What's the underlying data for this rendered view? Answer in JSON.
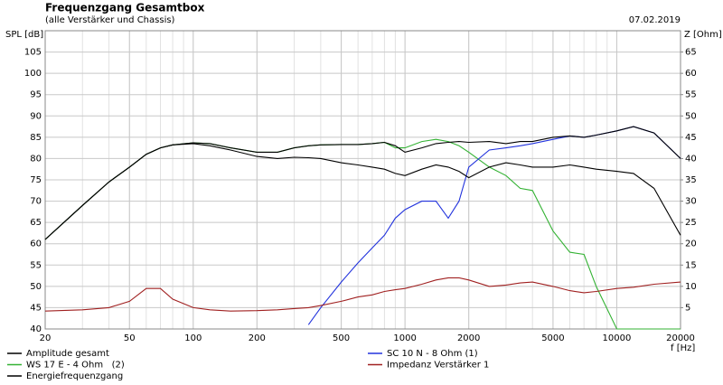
{
  "chart_data": {
    "type": "line",
    "title": "Frequenzgang Gesamtbox",
    "subtitle": "(alle Verstärker und Chassis)",
    "date": "07.02.2019",
    "y_label": "SPL [dB]",
    "y2_label": "Z [Ohm]",
    "x_label": "f [Hz]",
    "log_x": true,
    "grid": true,
    "xlim": [
      20,
      20000
    ],
    "xticks": [
      20,
      50,
      100,
      200,
      500,
      1000,
      2000,
      5000,
      10000,
      20000
    ],
    "ylim": [
      40,
      110
    ],
    "yticks": [
      40,
      45,
      50,
      55,
      60,
      65,
      70,
      75,
      80,
      85,
      90,
      95,
      100,
      105
    ],
    "y2lim": [
      0,
      70
    ],
    "y2ticks": [
      5,
      10,
      15,
      20,
      25,
      30,
      35,
      40,
      45,
      50,
      55,
      60,
      65
    ],
    "x": [
      20,
      30,
      40,
      50,
      60,
      70,
      80,
      100,
      120,
      150,
      200,
      250,
      300,
      350,
      400,
      500,
      600,
      700,
      800,
      900,
      1000,
      1200,
      1400,
      1600,
      1800,
      2000,
      2500,
      3000,
      3500,
      4000,
      5000,
      6000,
      7000,
      8000,
      10000,
      12000,
      15000,
      20000
    ],
    "series": [
      {
        "name": "Amplitude gesamt",
        "color": "#000000",
        "values": [
          61,
          69,
          74.5,
          78,
          81,
          82.5,
          83.2,
          83.7,
          83.5,
          82.5,
          81.5,
          81.5,
          82.5,
          83,
          83.2,
          83.3,
          83.3,
          83.5,
          83.8,
          83,
          81.5,
          82.5,
          83.5,
          83.8,
          84,
          83.8,
          84,
          83.5,
          84,
          84,
          85,
          85.3,
          85,
          85.5,
          86.5,
          87.5,
          86,
          80
        ]
      },
      {
        "name": "WS 17 E - 4 Ohm   (2)",
        "color": "#33b233",
        "values": [
          61,
          69,
          74.5,
          78,
          81,
          82.5,
          83.2,
          83.7,
          83.5,
          82.5,
          81.5,
          81.5,
          82.5,
          83,
          83.2,
          83.3,
          83.3,
          83.5,
          83.8,
          82.5,
          82.5,
          84,
          84.5,
          84,
          83,
          81.5,
          78,
          76,
          73,
          72.5,
          63,
          58,
          57.5,
          50,
          40,
          40,
          40,
          40
        ]
      },
      {
        "name": "Energiefrequenzgang",
        "color": "#000000",
        "values": [
          61,
          69,
          74.5,
          78,
          81,
          82.5,
          83.2,
          83.5,
          83,
          82,
          80.5,
          80,
          80.3,
          80.2,
          80,
          79,
          78.5,
          78,
          77.5,
          76.5,
          76,
          77.5,
          78.5,
          78,
          77,
          75.5,
          78,
          79,
          78.5,
          78,
          78,
          78.5,
          78,
          77.5,
          77,
          76.5,
          73,
          62
        ]
      },
      {
        "name": "SC 10 N - 8 Ohm (1)",
        "color": "#2233dd",
        "values": [
          null,
          null,
          null,
          null,
          null,
          null,
          null,
          null,
          null,
          null,
          null,
          null,
          null,
          41,
          45,
          51,
          55.5,
          59,
          62,
          66,
          68,
          70,
          70,
          66,
          70,
          78,
          82,
          82.5,
          83,
          83.5,
          84.5,
          85.3,
          85,
          85.5,
          86.5,
          87.5,
          86,
          80
        ]
      },
      {
        "name": "Impedanz Verstärker 1",
        "color": "#a02020",
        "axis": "y2",
        "values": [
          4.2,
          4.5,
          5,
          6.5,
          9.5,
          9.5,
          7,
          5,
          4.5,
          4.2,
          4.3,
          4.5,
          4.8,
          5,
          5.5,
          6.5,
          7.5,
          8,
          8.8,
          9.2,
          9.5,
          10.5,
          11.5,
          12,
          12,
          11.5,
          10,
          10.3,
          10.8,
          11,
          10,
          9,
          8.5,
          8.8,
          9.5,
          9.8,
          10.5,
          11
        ]
      }
    ]
  }
}
